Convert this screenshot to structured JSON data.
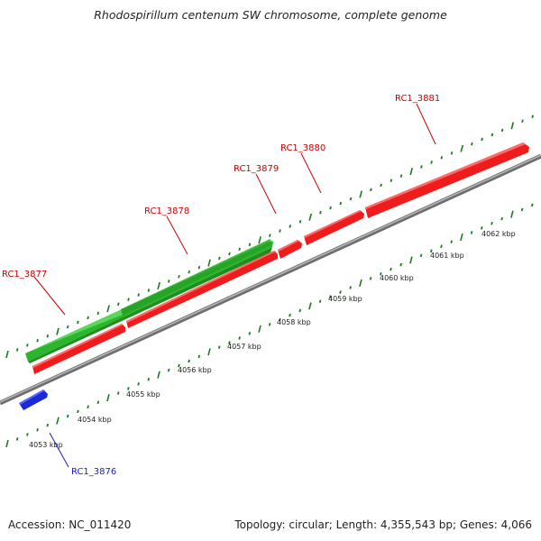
{
  "title": "Rhodospirillum centenum SW chromosome, complete genome",
  "accession": "Accession: NC_011420",
  "topology": "Topology: circular; Length: 4,355,543 bp; Genes: 4,066",
  "colors": {
    "forward_cds": "#ee1c1c",
    "reverse_cds": "#2ebd2e",
    "other": "#1a2bd6",
    "backbone": "#8a8a8a",
    "tick": "#1e7a1e",
    "forward_label": "#cc0000",
    "other_label": "#1a1acc"
  },
  "scale_labels": [
    "4053 kbp",
    "4054 kbp",
    "4055 kbp",
    "4056 kbp",
    "4057 kbp",
    "4058 kbp",
    "4059 kbp",
    "4060 kbp",
    "4061 kbp",
    "4062 kbp"
  ],
  "gene_labels": [
    "RC1_3876",
    "RC1_3877",
    "RC1_3878",
    "RC1_3879",
    "RC1_3880",
    "RC1_3881"
  ]
}
